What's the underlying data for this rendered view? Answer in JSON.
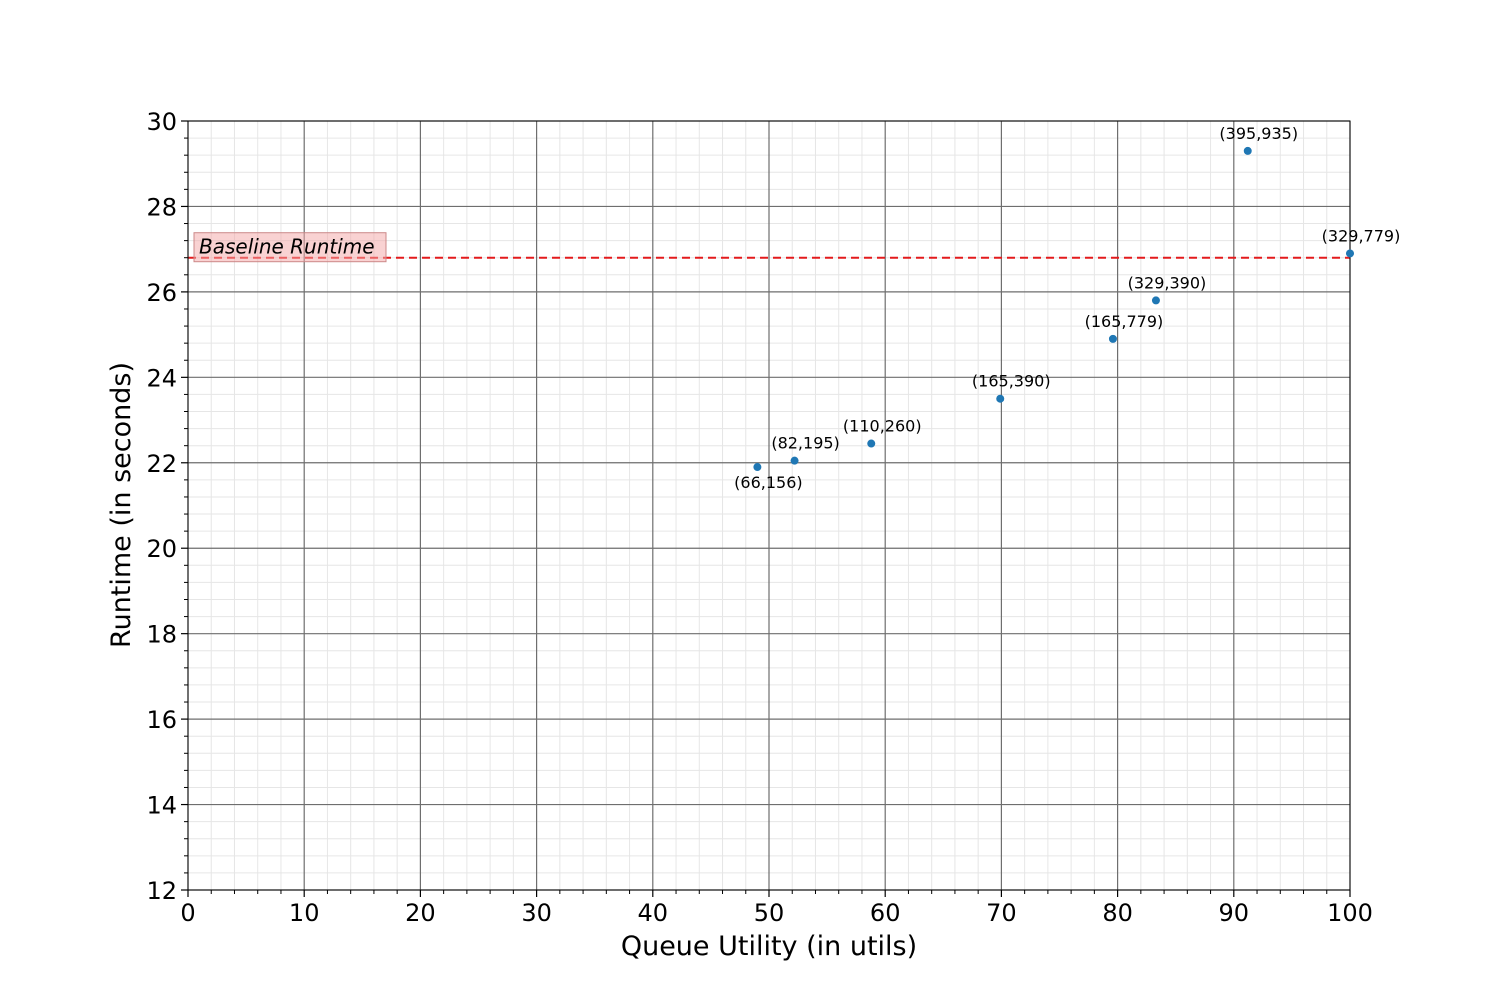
{
  "chart_data": {
    "type": "scatter",
    "title": "",
    "xlabel": "Queue Utility (in utils)",
    "ylabel": "Runtime (in seconds)",
    "xlim": [
      0,
      100
    ],
    "ylim": [
      12,
      30
    ],
    "x_ticks": [
      0,
      10,
      20,
      30,
      40,
      50,
      60,
      70,
      80,
      90,
      100
    ],
    "y_ticks": [
      12,
      14,
      16,
      18,
      20,
      22,
      24,
      26,
      28,
      30
    ],
    "grid": "major and minor",
    "point_color": "#1f77b4",
    "points": [
      {
        "x": 49.0,
        "y": 21.9,
        "label": "(66,156)",
        "label_pos": "below"
      },
      {
        "x": 52.2,
        "y": 22.05,
        "label": "(82,195)",
        "label_pos": "above"
      },
      {
        "x": 58.8,
        "y": 22.45,
        "label": "(110,260)",
        "label_pos": "above"
      },
      {
        "x": 69.9,
        "y": 23.5,
        "label": "(165,390)",
        "label_pos": "above"
      },
      {
        "x": 79.6,
        "y": 24.9,
        "label": "(165,779)",
        "label_pos": "above"
      },
      {
        "x": 83.3,
        "y": 25.8,
        "label": "(329,390)",
        "label_pos": "above"
      },
      {
        "x": 91.2,
        "y": 29.3,
        "label": "(395,935)",
        "label_pos": "above"
      },
      {
        "x": 100.0,
        "y": 26.9,
        "label": "(329,779)",
        "label_pos": "above"
      }
    ],
    "baseline": {
      "y": 26.8,
      "label": "Baseline Runtime",
      "color": "#e31a1c",
      "style": "dashed"
    }
  }
}
